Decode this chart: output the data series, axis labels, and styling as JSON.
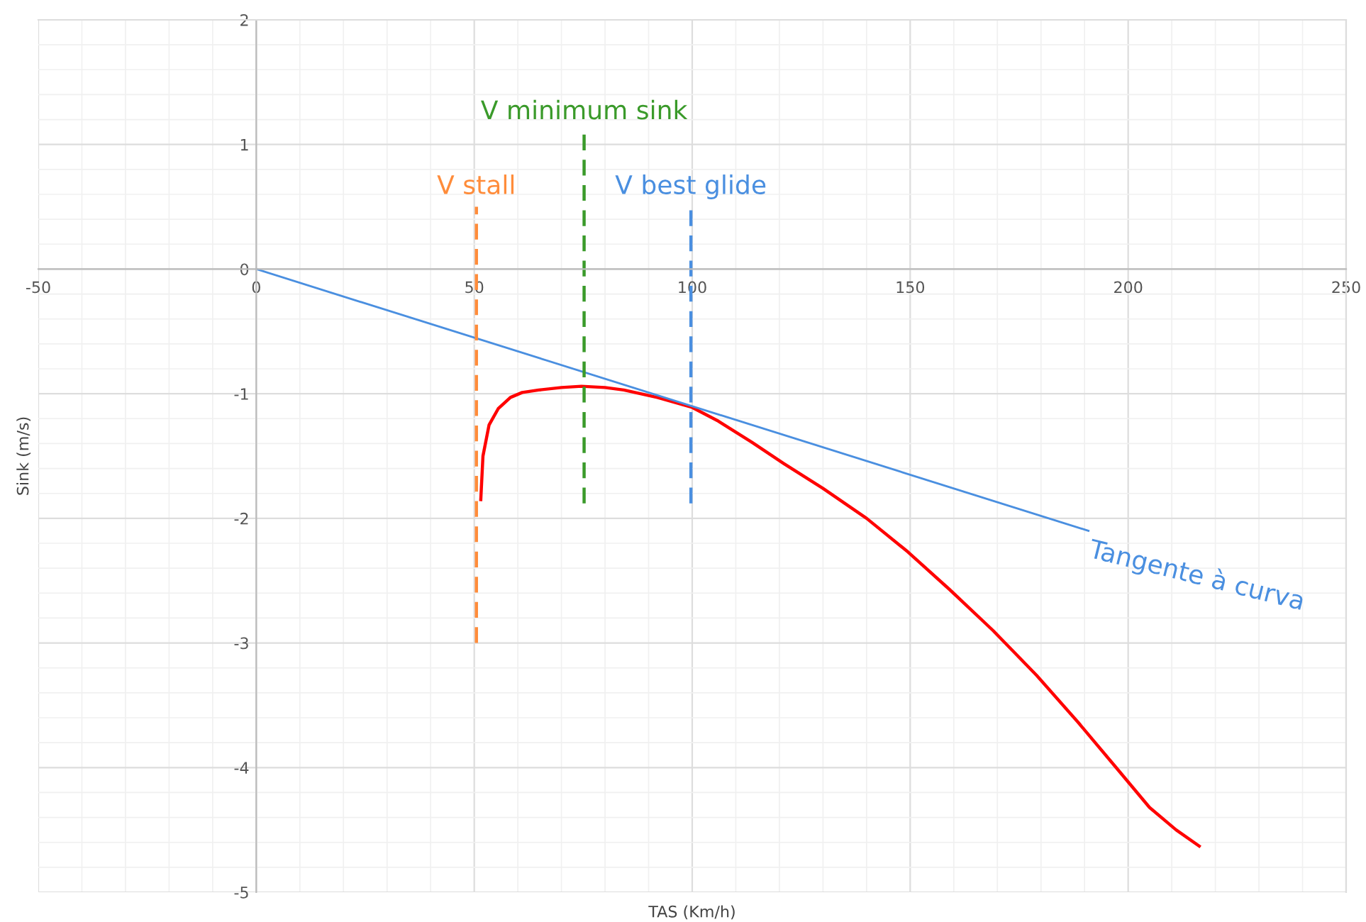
{
  "chart_data": {
    "type": "line",
    "xlabel": "TAS (Km/h)",
    "ylabel": "Sink (m/s)",
    "xlim": [
      -50,
      250
    ],
    "xticks": [
      -50,
      0,
      50,
      100,
      150,
      200,
      250
    ],
    "ylim": [
      -5,
      2
    ],
    "yticks": [
      -5,
      -4,
      -3,
      -2,
      -1,
      0,
      1,
      2
    ],
    "grid": true,
    "legend": false,
    "series": [
      {
        "color": "#ff0000",
        "x": [
          51.5,
          52,
          53.4,
          55.5,
          58.3,
          61,
          64.8,
          70,
          74.6,
          80,
          84.3,
          92,
          100,
          106,
          113.7,
          121,
          130,
          140,
          149.5,
          159,
          169,
          179,
          188.6,
          197,
          204.9,
          211,
          216.3
        ],
        "values": [
          -1.85,
          -1.5,
          -1.25,
          -1.12,
          -1.03,
          -0.99,
          -0.97,
          -0.95,
          -0.94,
          -0.95,
          -0.97,
          -1.03,
          -1.11,
          -1.22,
          -1.39,
          -1.56,
          -1.76,
          -2.0,
          -2.27,
          -2.57,
          -2.9,
          -3.26,
          -3.64,
          -3.99,
          -4.32,
          -4.5,
          -4.63
        ]
      },
      {
        "color": "#4a8fe0",
        "x": [
          0,
          190.9
        ],
        "values": [
          0,
          -2.1
        ]
      },
      {
        "name": "V stall",
        "color": "#ff8c3a",
        "line_style": "dashed",
        "x": [
          50.5,
          50.5
        ],
        "values": [
          -3,
          0.5
        ]
      },
      {
        "name": "V minimum sink",
        "color": "#3a9a2a",
        "line_style": "dashed",
        "x": [
          75.2,
          75.2
        ],
        "values": [
          -1.88,
          1.1
        ]
      },
      {
        "name": "V best glide",
        "color": "#4a8fe0",
        "line_style": "dashed",
        "x": [
          99.7,
          99.7
        ],
        "values": [
          -1.88,
          0.5
        ]
      }
    ],
    "annotations": [
      {
        "text": "Tangente à curva",
        "x": 190.9,
        "y": -2.1
      }
    ]
  }
}
